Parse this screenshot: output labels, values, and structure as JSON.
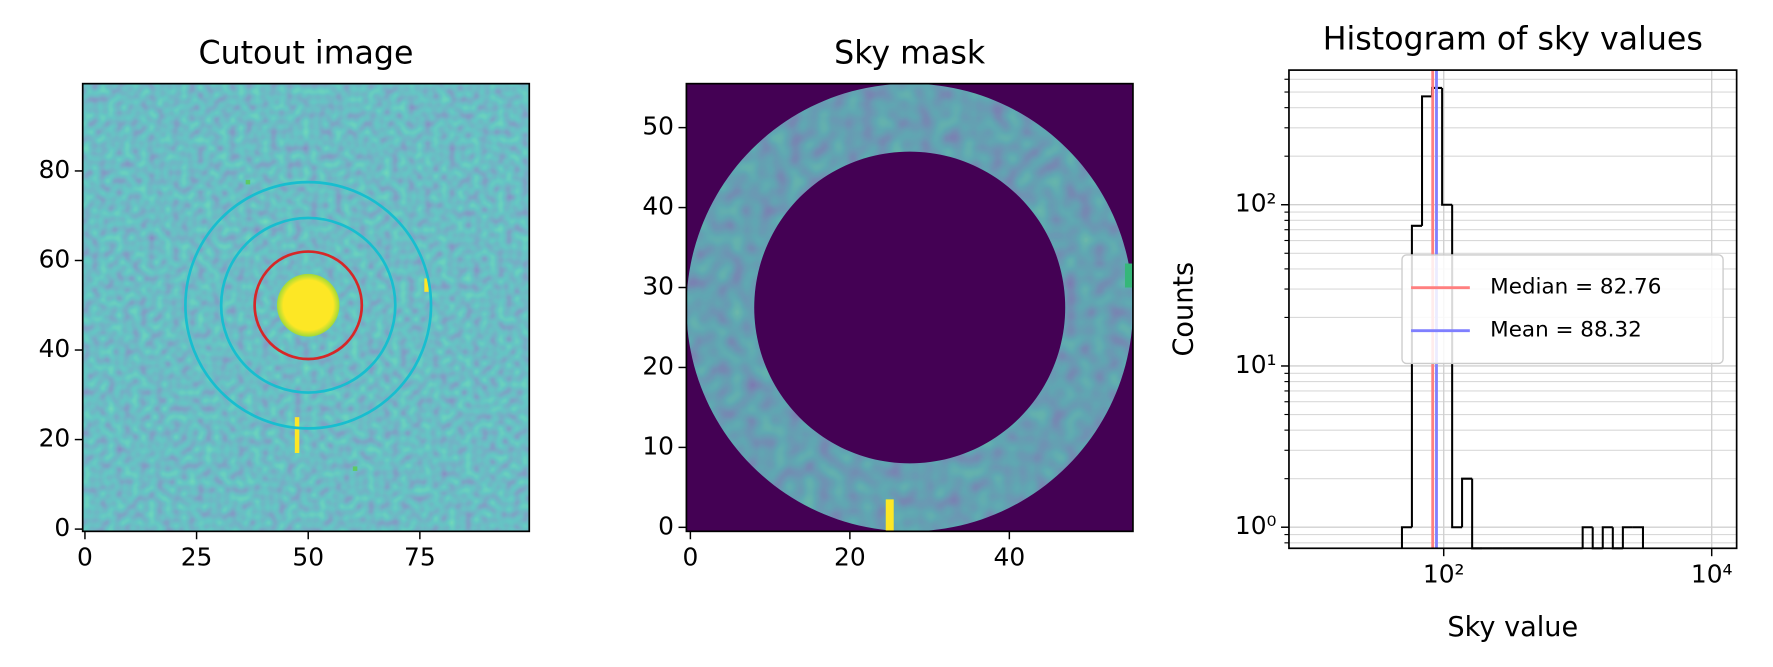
{
  "chart_data": [
    {
      "type": "image",
      "title": "Cutout image",
      "xlim": [
        -0.5,
        99.5
      ],
      "ylim": [
        -0.5,
        99.5
      ],
      "xticks": [
        0,
        25,
        50,
        75
      ],
      "yticks": [
        0,
        20,
        40,
        60,
        80
      ]
    },
    {
      "type": "image",
      "title": "Sky mask",
      "xlim": [
        -0.5,
        55.5
      ],
      "ylim": [
        -0.5,
        55.5
      ],
      "xticks": [
        0,
        20,
        40
      ],
      "yticks": [
        0,
        10,
        20,
        30,
        40,
        50
      ]
    },
    {
      "type": "histogram",
      "title": "Histogram of sky values",
      "x_label": "Sky value",
      "y_label": "Counts",
      "xscale": "log",
      "yscale": "log",
      "grid": true,
      "xlim": [
        7,
        15350
      ],
      "ylim": [
        0.74,
        684
      ],
      "xticks": [
        {
          "value": 100,
          "label": "10²"
        },
        {
          "value": 10000,
          "label": "10⁴"
        }
      ],
      "yticks": [
        {
          "value": 1,
          "label": "10⁰"
        },
        {
          "value": 10,
          "label": "10¹"
        },
        {
          "value": 100,
          "label": "10²"
        }
      ],
      "yminorticks": [
        0.8,
        0.9,
        2,
        3,
        4,
        5,
        6,
        7,
        8,
        9,
        20,
        30,
        40,
        50,
        60,
        70,
        80,
        90,
        200,
        300,
        400,
        500,
        600
      ],
      "bins": [
        48.8,
        57.9,
        68.9,
        81.8,
        97.3,
        115.6,
        137.1,
        163.0,
        193.6,
        230.1,
        273.5,
        325.1,
        386.4,
        459.2,
        545.8,
        648.6,
        770.9,
        916.2,
        1089,
        1294,
        1538,
        1828,
        2173,
        2582,
        3069
      ],
      "counts": [
        1,
        74,
        470,
        530,
        100,
        1,
        2,
        0,
        0,
        0,
        0,
        0,
        0,
        0,
        0,
        0,
        0,
        0,
        1,
        0,
        1,
        0,
        1,
        1
      ],
      "color": "#000000",
      "lines": [
        {
          "label": "Median = 82.76",
          "value": 82.76,
          "color": "#ff7f7f"
        },
        {
          "label": "Mean = 88.32",
          "value": 88.32,
          "color": "#7f7fff"
        }
      ],
      "legend": "center right"
    }
  ]
}
